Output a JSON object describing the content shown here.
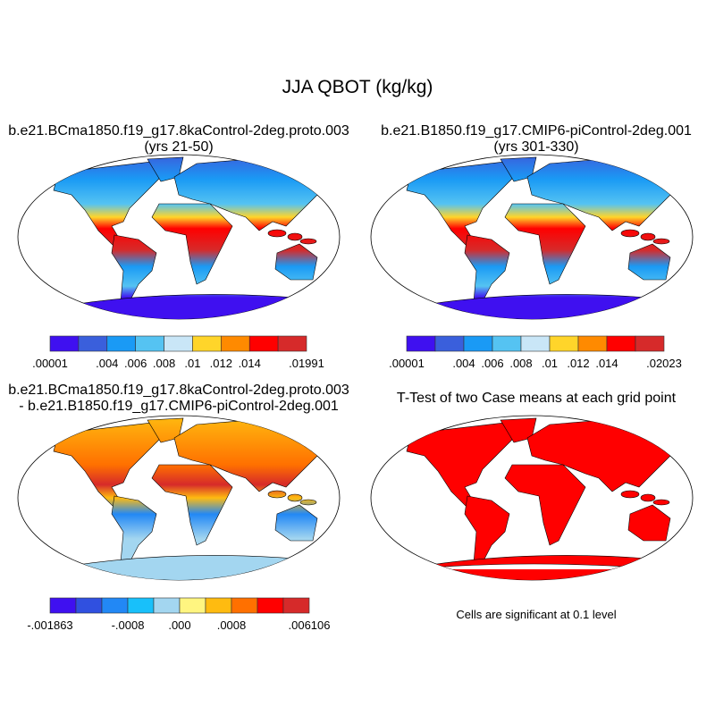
{
  "title": "JJA QBOT (kg/kg)",
  "chart_data": [
    {
      "type": "map",
      "title": "b.e21.BCma1850.f19_g17.8kaControl-2deg.proto.003",
      "subtitle": "(yrs 21-50)",
      "colorbar": {
        "colors": [
          "#3f10f0",
          "#3a5fdc",
          "#1a9af5",
          "#55c3f2",
          "#c9e6f7",
          "#ffd52a",
          "#ff8a00",
          "#ff0000",
          "#d62a2a"
        ],
        "labels": [
          ".00001",
          ".004",
          ".006",
          ".008",
          ".01",
          ".012",
          ".014",
          ".01991"
        ],
        "label_positions": [
          0,
          2,
          3,
          4,
          5,
          6,
          7,
          9
        ]
      }
    },
    {
      "type": "map",
      "title": "b.e21.B1850.f19_g17.CMIP6-piControl-2deg.001",
      "subtitle": "(yrs 301-330)",
      "colorbar": {
        "colors": [
          "#3f10f0",
          "#3a5fdc",
          "#1a9af5",
          "#55c3f2",
          "#c9e6f7",
          "#ffd52a",
          "#ff8a00",
          "#ff0000",
          "#d62a2a"
        ],
        "labels": [
          ".00001",
          ".004",
          ".006",
          ".008",
          ".01",
          ".012",
          ".014",
          ".02023"
        ],
        "label_positions": [
          0,
          2,
          3,
          4,
          5,
          6,
          7,
          9
        ]
      }
    },
    {
      "type": "map",
      "title": "b.e21.BCma1850.f19_g17.8kaControl-2deg.proto.003",
      "subtitle": "- b.e21.B1850.f19_g17.CMIP6-piControl-2deg.001",
      "colorbar": {
        "colors": [
          "#3f10f0",
          "#3050e0",
          "#2288f5",
          "#18c0fa",
          "#a3d6f0",
          "#fff580",
          "#ffbb10",
          "#ff7000",
          "#ff0000",
          "#d62a2a"
        ],
        "labels": [
          "-.001863",
          "-.0008",
          ".000",
          ".0008",
          ".006106"
        ],
        "label_positions": [
          0,
          3,
          5,
          7,
          10
        ]
      }
    },
    {
      "type": "map",
      "title": "T-Test of two Case means at each grid point",
      "subtitle": "",
      "note": "Cells are significant at 0.1 level"
    }
  ]
}
